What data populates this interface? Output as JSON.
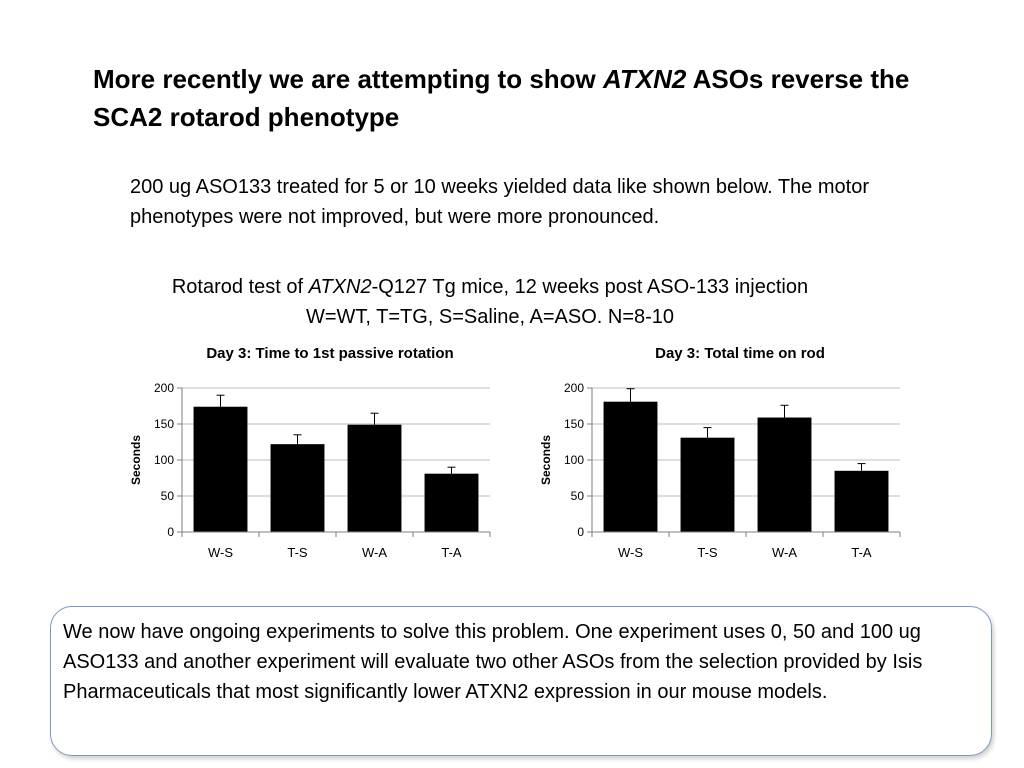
{
  "slide": {
    "title_before": "More recently we are attempting to show ",
    "title_gene": "ATXN2",
    "title_after": " ASOs reverse the SCA2 rotarod phenotype",
    "description": "200 ug ASO133 treated for 5 or 10 weeks yielded data like shown below.  The motor phenotypes were not improved, but were more pronounced.",
    "chart_heading_before": "Rotarod test of ",
    "chart_heading_gene": "ATXN2",
    "chart_heading_after": "-Q127 Tg mice, 12 weeks post ASO-133 injection",
    "chart_heading_line2": "W=WT, T=TG, S=Saline, A=ASO.  N=8-10",
    "callout": "We now have ongoing experiments to solve this problem.  One experiment uses 0, 50 and 100 ug ASO133 and another experiment will evaluate two other ASOs from the selection provided by Isis Pharmaceuticals that most significantly lower ATXN2 expression in our mouse models."
  },
  "chart_data": [
    {
      "type": "bar",
      "title": "Day 3:  Time to 1st passive rotation",
      "ylabel": "Seconds",
      "xlabel": "",
      "categories": [
        "W-S",
        "T-S",
        "W-A",
        "T-A"
      ],
      "values": [
        174,
        122,
        149,
        81
      ],
      "errors": [
        16,
        13,
        16,
        9
      ],
      "ylim": [
        0,
        200
      ],
      "yticks": [
        0,
        50,
        100,
        150,
        200
      ],
      "grid": true,
      "bar_color": "#000000"
    },
    {
      "type": "bar",
      "title": "Day 3:  Total time on rod",
      "ylabel": "Seconds",
      "xlabel": "",
      "categories": [
        "W-S",
        "T-S",
        "W-A",
        "T-A"
      ],
      "values": [
        181,
        131,
        159,
        85
      ],
      "errors": [
        18,
        14,
        17,
        10
      ],
      "ylim": [
        0,
        200
      ],
      "yticks": [
        0,
        50,
        100,
        150,
        200
      ],
      "grid": true,
      "bar_color": "#000000"
    }
  ]
}
